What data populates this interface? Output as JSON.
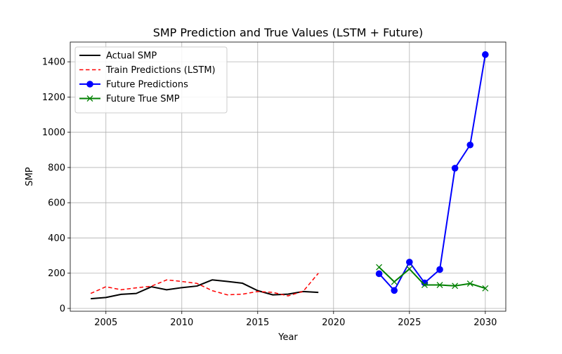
{
  "chart_data": {
    "type": "line",
    "title": "SMP Prediction and True Values (LSTM + Future)",
    "xlabel": "Year",
    "ylabel": "SMP",
    "xlim": [
      2002.65,
      2031.35
    ],
    "ylim": [
      -16,
      1512
    ],
    "xticks": [
      2005,
      2010,
      2015,
      2020,
      2025,
      2030
    ],
    "yticks": [
      0,
      200,
      400,
      600,
      800,
      1000,
      1200,
      1400
    ],
    "grid": true,
    "legend_position": "top-left",
    "series": [
      {
        "name": "Actual SMP",
        "color": "#000000",
        "style": "solid",
        "marker": "none",
        "x": [
          2004,
          2005,
          2006,
          2007,
          2008,
          2009,
          2010,
          2011,
          2012,
          2013,
          2014,
          2015,
          2016,
          2017,
          2018,
          2019
        ],
        "y": [
          55,
          62,
          80,
          85,
          123,
          106,
          118,
          127,
          162,
          153,
          143,
          101,
          77,
          81,
          96,
          91
        ]
      },
      {
        "name": "Train Predictions (LSTM)",
        "color": "#ff0000",
        "style": "dashed",
        "marker": "none",
        "x": [
          2004,
          2005,
          2006,
          2007,
          2008,
          2009,
          2010,
          2011,
          2012,
          2013,
          2014,
          2015,
          2016,
          2017,
          2018,
          2019
        ],
        "y": [
          85,
          123,
          106,
          117,
          126,
          162,
          153,
          142,
          101,
          77,
          81,
          96,
          91,
          71,
          97,
          200
        ]
      },
      {
        "name": "Future Predictions",
        "color": "#0000ff",
        "style": "solid",
        "marker": "circle",
        "x": [
          2023,
          2024,
          2025,
          2026,
          2027,
          2028,
          2029,
          2030
        ],
        "y": [
          197,
          102,
          263,
          145,
          221,
          796,
          928,
          1441
        ]
      },
      {
        "name": "Future True SMP",
        "color": "#008000",
        "style": "solid",
        "marker": "x",
        "x": [
          2023,
          2024,
          2025,
          2026,
          2027,
          2028,
          2029,
          2030
        ],
        "y": [
          234,
          151,
          224,
          133,
          133,
          128,
          141,
          114
        ]
      }
    ]
  }
}
